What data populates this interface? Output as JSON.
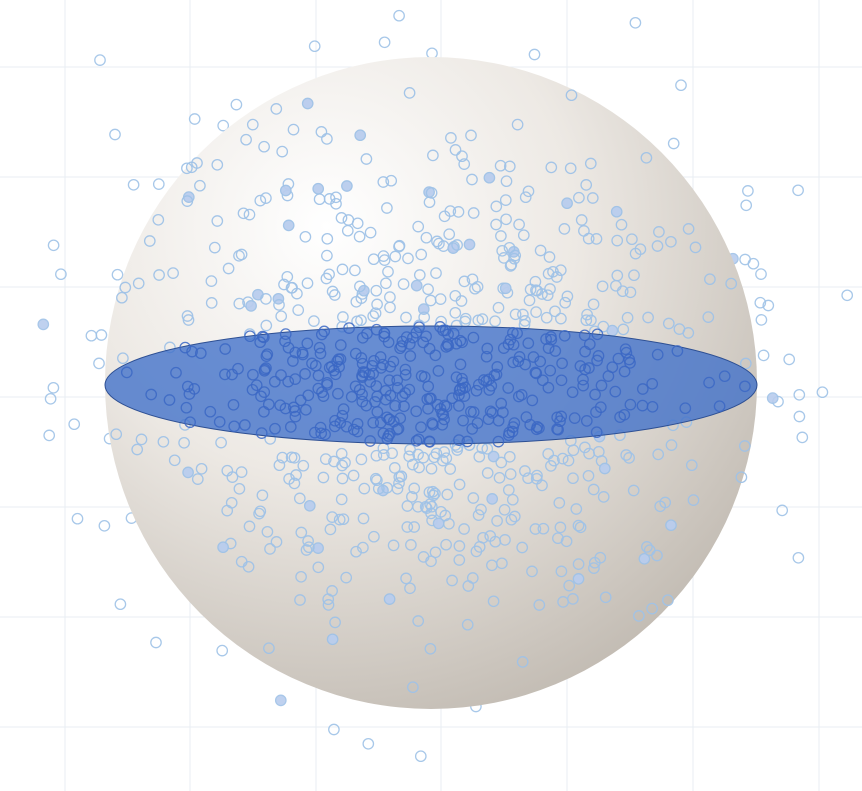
{
  "view": {
    "background": "#ffffff",
    "grid_color": "#e8edf3"
  },
  "sphere": {
    "light_color": "#ffffff",
    "mid_color": "#ede9e4",
    "shadow_color": "#bdb6ad"
  },
  "equatorial_disk": {
    "fill": "#3f6fc9",
    "fill_opacity": 0.78,
    "stroke": "#2d4f93"
  },
  "points": {
    "outline_color": "#9fc2e7",
    "dense_outline_color": "#3b67c4",
    "filled_color": "#b9cdee",
    "total_count": 900
  }
}
